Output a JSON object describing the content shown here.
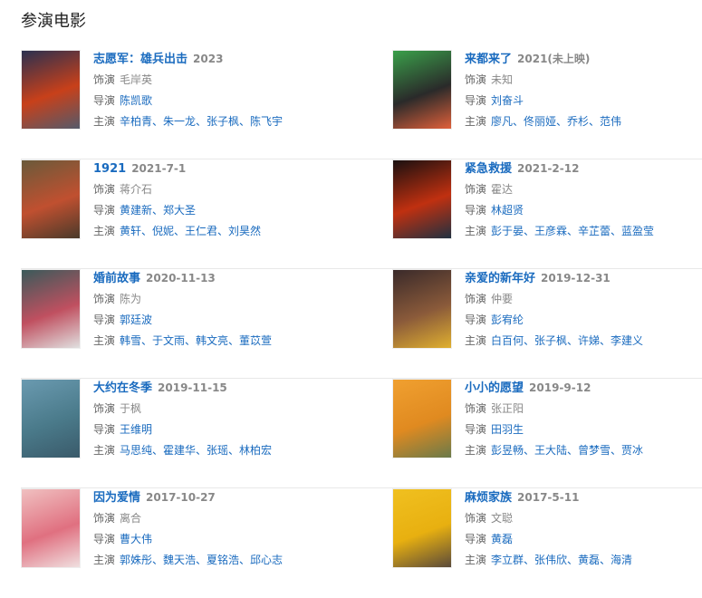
{
  "heading": "参演电影",
  "labels": {
    "role": "饰演",
    "director": "导演",
    "cast": "主演"
  },
  "movies": [
    {
      "title": "志愿军：雄兵出击",
      "date": "2023",
      "role": "毛岸英",
      "director": "陈凯歌",
      "cast": "辛柏青、朱一龙、张子枫、陈飞宇",
      "poster": [
        "#2a3050",
        "#c8401a",
        "#555a6a"
      ]
    },
    {
      "title": "来都来了",
      "date": "2021(未上映)",
      "role": "未知",
      "director": "刘奋斗",
      "cast": "廖凡、佟丽娅、乔杉、范伟",
      "poster": [
        "#3aa04a",
        "#2a2a2a",
        "#e0603a"
      ]
    },
    {
      "title": "1921",
      "date": "2021-7-1",
      "role": "蒋介石",
      "director": "黄建新、郑大圣",
      "cast": "黄轩、倪妮、王仁君、刘昊然",
      "poster": [
        "#6a5a3a",
        "#c05030",
        "#4a3a2a"
      ]
    },
    {
      "title": "紧急救援",
      "date": "2021-2-12",
      "role": "霍达",
      "director": "林超贤",
      "cast": "彭于晏、王彦霖、辛芷蕾、蓝盈莹",
      "poster": [
        "#1a1010",
        "#c03010",
        "#203040"
      ]
    },
    {
      "title": "婚前故事",
      "date": "2020-11-13",
      "role": "陈为",
      "director": "郭廷波",
      "cast": "韩雪、于文雨、韩文亮、董苡萱",
      "poster": [
        "#3a5a5a",
        "#c05060",
        "#e0e0e0"
      ]
    },
    {
      "title": "亲爱的新年好",
      "date": "2019-12-31",
      "role": "仲要",
      "director": "彭宥纶",
      "cast": "白百何、张子枫、许娣、李建义",
      "poster": [
        "#3a2a2a",
        "#8a5a3a",
        "#e0b030"
      ]
    },
    {
      "title": "大约在冬季",
      "date": "2019-11-15",
      "role": "于枫",
      "director": "王维明",
      "cast": "马思纯、霍建华、张瑶、林柏宏",
      "poster": [
        "#6a9ab0",
        "#4a7a8a",
        "#3a5a6a"
      ]
    },
    {
      "title": "小小的愿望",
      "date": "2019-9-12",
      "role": "张正阳",
      "director": "田羽生",
      "cast": "彭昱畅、王大陆、曾梦雪、贾冰",
      "poster": [
        "#f0a030",
        "#e08a20",
        "#6a7a4a"
      ]
    },
    {
      "title": "因为爱情",
      "date": "2017-10-27",
      "role": "离合",
      "director": "曹大伟",
      "cast": "郭姝彤、魏天浩、夏铭浩、邱心志",
      "poster": [
        "#f0c0c0",
        "#e07080",
        "#f0e0e0"
      ]
    },
    {
      "title": "麻烦家族",
      "date": "2017-5-11",
      "role": "文聪",
      "director": "黄磊",
      "cast": "李立群、张伟欣、黄磊、海清",
      "poster": [
        "#f0c020",
        "#e8b010",
        "#5a4a3a"
      ]
    }
  ]
}
